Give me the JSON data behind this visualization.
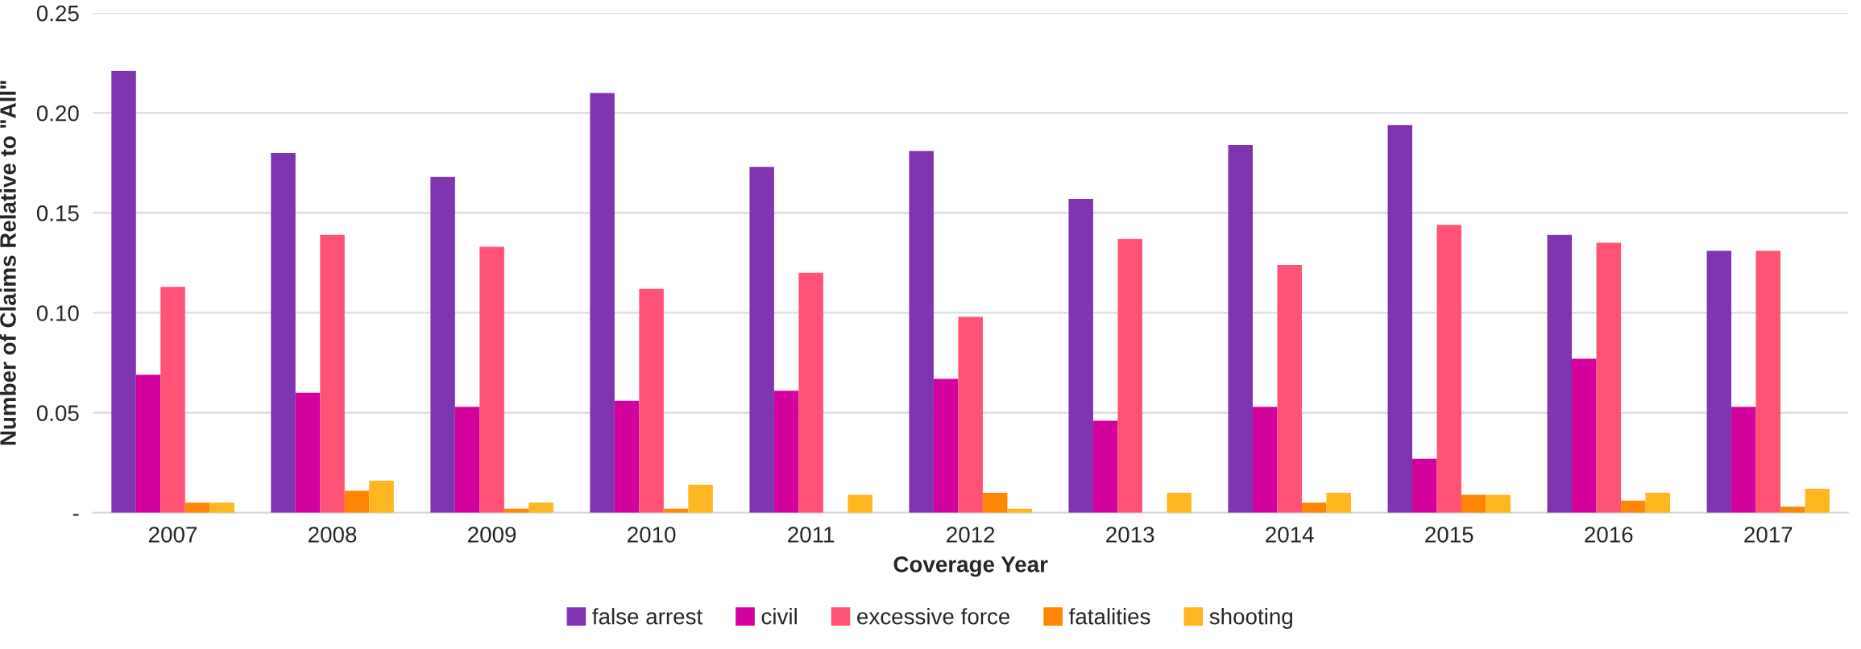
{
  "chart_data": {
    "type": "bar",
    "xlabel": "Coverage Year",
    "ylabel": "Number of Claims Relative to \"All\"",
    "categories": [
      "2007",
      "2008",
      "2009",
      "2010",
      "2011",
      "2012",
      "2013",
      "2014",
      "2015",
      "2016",
      "2017"
    ],
    "series": [
      {
        "name": "false arrest",
        "color": "#7f34b0",
        "values": [
          0.221,
          0.18,
          0.168,
          0.21,
          0.173,
          0.181,
          0.157,
          0.184,
          0.194,
          0.139,
          0.131
        ]
      },
      {
        "name": "civil",
        "color": "#d3029c",
        "values": [
          0.069,
          0.06,
          0.053,
          0.056,
          0.061,
          0.067,
          0.046,
          0.053,
          0.027,
          0.077,
          0.053
        ]
      },
      {
        "name": "excessive force",
        "color": "#ff5275",
        "values": [
          0.113,
          0.139,
          0.133,
          0.112,
          0.12,
          0.098,
          0.137,
          0.124,
          0.144,
          0.135,
          0.131
        ]
      },
      {
        "name": "fatalities",
        "color": "#ff8503",
        "values": [
          0.005,
          0.011,
          0.002,
          0.002,
          null,
          0.01,
          null,
          0.005,
          0.009,
          0.006,
          0.003
        ]
      },
      {
        "name": "shooting",
        "color": "#ffb620",
        "values": [
          0.005,
          0.016,
          0.005,
          0.014,
          0.009,
          0.002,
          0.01,
          0.01,
          0.009,
          0.01,
          0.012
        ]
      }
    ],
    "ylim": [
      0,
      0.25
    ],
    "yticks": [
      {
        "value": 0,
        "label": "-"
      },
      {
        "value": 0.05,
        "label": "0.05"
      },
      {
        "value": 0.1,
        "label": "0.10"
      },
      {
        "value": 0.15,
        "label": "0.15"
      },
      {
        "value": 0.2,
        "label": "0.20"
      },
      {
        "value": 0.25,
        "label": "0.25"
      }
    ],
    "grid": "y",
    "legend": "bottom"
  }
}
